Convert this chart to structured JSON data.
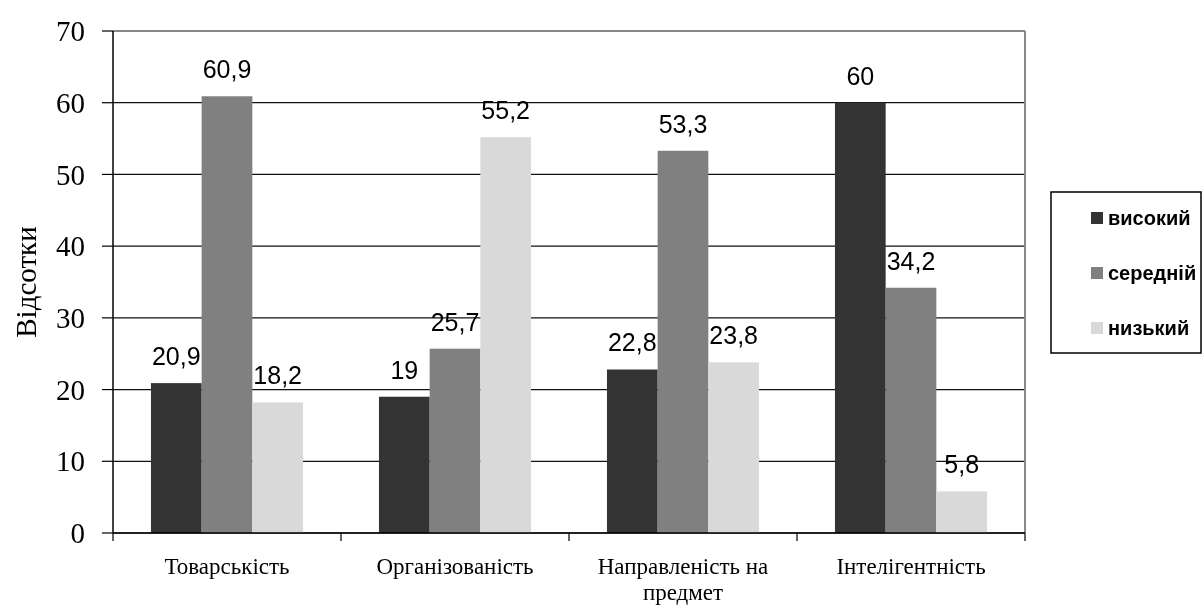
{
  "chart_data": {
    "type": "bar",
    "ylabel": "Відсотки",
    "categories": [
      "Товарськість",
      "Організованість",
      "Направленість на предмет",
      "Інтелігентність"
    ],
    "series": [
      {
        "name": "високий",
        "color": "#333333",
        "values": [
          20.9,
          19,
          22.8,
          60
        ],
        "value_labels": [
          "20,9",
          "19",
          "22,8",
          "60"
        ]
      },
      {
        "name": "середній",
        "color": "#808080",
        "values": [
          60.9,
          25.7,
          53.3,
          34.2
        ],
        "value_labels": [
          "60,9",
          "25,7",
          "53,3",
          "34,2"
        ]
      },
      {
        "name": "низький",
        "color": "#d9d9d9",
        "values": [
          18.2,
          55.2,
          23.8,
          5.8
        ],
        "value_labels": [
          "18,2",
          "55,2",
          "23,8",
          "5,8"
        ]
      }
    ],
    "ylim": [
      0,
      70
    ],
    "yticks": [
      0,
      10,
      20,
      30,
      40,
      50,
      60,
      70
    ],
    "grid": "y",
    "legend": "right"
  }
}
